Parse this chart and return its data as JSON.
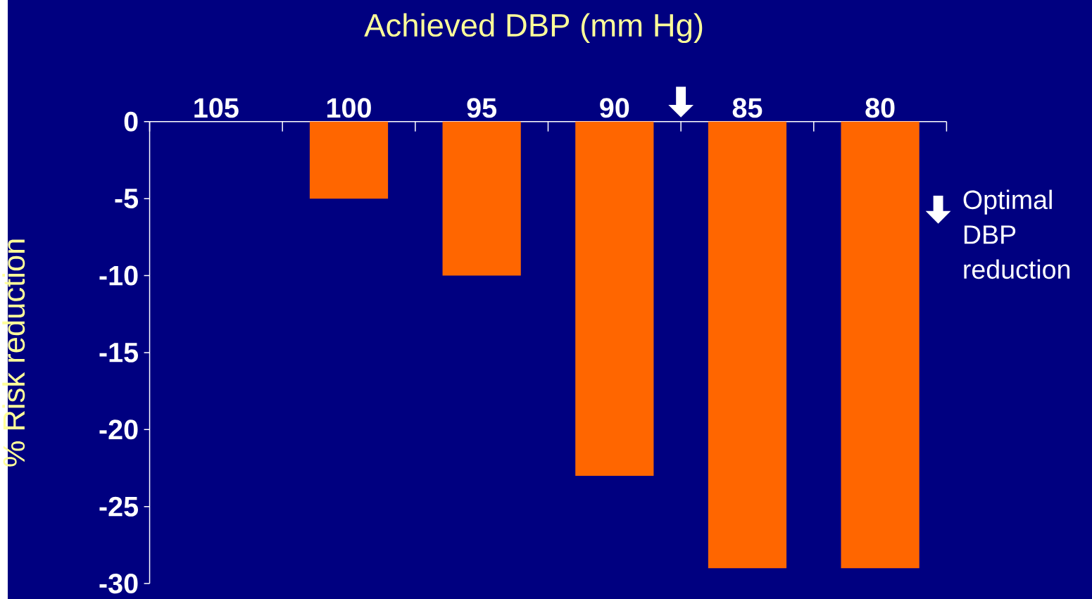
{
  "chart_data": {
    "type": "bar",
    "title": "Achieved DBP (mm Hg)",
    "ylabel": "% Risk reduction",
    "categories": [
      "105",
      "100",
      "95",
      "90",
      "85",
      "80"
    ],
    "values": [
      0,
      -5,
      -10,
      -23,
      -29,
      -29
    ],
    "color": "#ff6600",
    "ylim": [
      -30,
      0
    ],
    "yticks": [
      0,
      -5,
      -10,
      -15,
      -20,
      -25,
      -30
    ],
    "grid": false,
    "annotations": [
      {
        "text": "Optimal DBP reduction"
      }
    ]
  }
}
